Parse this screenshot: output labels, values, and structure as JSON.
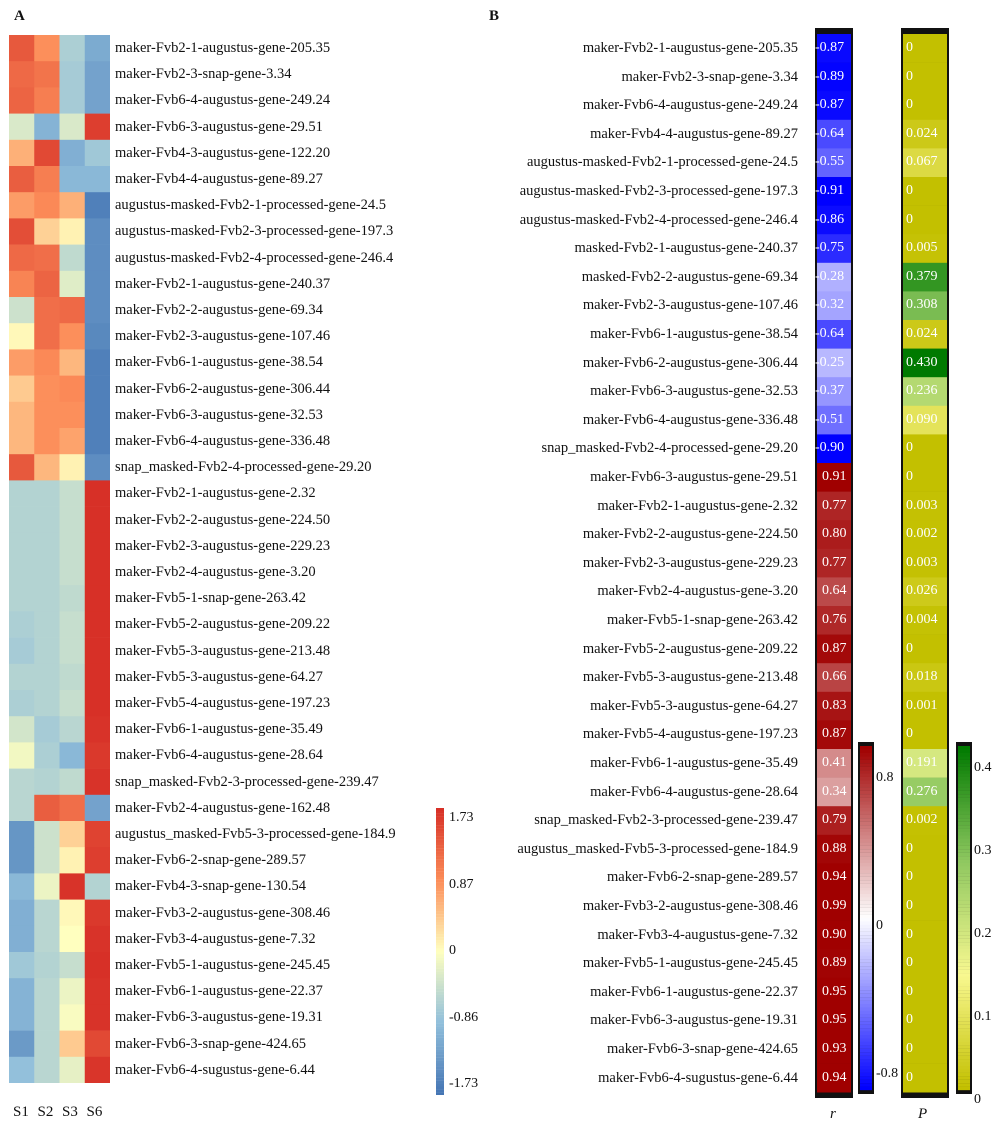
{
  "chart_data": [
    {
      "type": "heatmap",
      "panel": "A",
      "columns": [
        "S1",
        "S2",
        "S3",
        "S6"
      ],
      "rows": [
        "maker-Fvb2-1-augustus-gene-205.35",
        "maker-Fvb2-3-snap-gene-3.34",
        "maker-Fvb6-4-augustus-gene-249.24",
        "maker-Fvb6-3-augustus-gene-29.51",
        "maker-Fvb4-3-augustus-gene-122.20",
        "maker-Fvb4-4-augustus-gene-89.27",
        "augustus-masked-Fvb2-1-processed-gene-24.5",
        "augustus-masked-Fvb2-3-processed-gene-197.3",
        "augustus-masked-Fvb2-4-processed-gene-246.4",
        "maker-Fvb2-1-augustus-gene-240.37",
        "maker-Fvb2-2-augustus-gene-69.34",
        "maker-Fvb2-3-augustus-gene-107.46",
        "maker-Fvb6-1-augustus-gene-38.54",
        "maker-Fvb6-2-augustus-gene-306.44",
        "maker-Fvb6-3-augustus-gene-32.53",
        "maker-Fvb6-4-augustus-gene-336.48",
        "snap_masked-Fvb2-4-processed-gene-29.20",
        "maker-Fvb2-1-augustus-gene-2.32",
        "maker-Fvb2-2-augustus-gene-224.50",
        "maker-Fvb2-3-augustus-gene-229.23",
        "maker-Fvb2-4-augustus-gene-3.20",
        "maker-Fvb5-1-snap-gene-263.42",
        "maker-Fvb5-2-augustus-gene-209.22",
        "maker-Fvb5-3-augustus-gene-213.48",
        "maker-Fvb5-3-augustus-gene-64.27",
        "maker-Fvb5-4-augustus-gene-197.23",
        "maker-Fvb6-1-augustus-gene-35.49",
        "maker-Fvb6-4-augustus-gene-28.64",
        "snap_masked-Fvb2-3-processed-gene-239.47",
        "maker-Fvb2-4-augustus-gene-162.48",
        "augustus_masked-Fvb5-3-processed-gene-184.9",
        "maker-Fvb6-2-snap-gene-289.57",
        "maker-Fvb4-3-snap-gene-130.54",
        "maker-Fvb3-2-augustus-gene-308.46",
        "maker-Fvb3-4-augustus-gene-7.32",
        "maker-Fvb5-1-augustus-gene-245.45",
        "maker-Fvb6-1-augustus-gene-22.37",
        "maker-Fvb6-3-augustus-gene-19.31",
        "maker-Fvb6-3-snap-gene-424.65",
        "maker-Fvb6-4-sugustus-gene-6.44"
      ],
      "values": [
        [
          1.35,
          0.85,
          -0.65,
          -1.1
        ],
        [
          1.2,
          1.1,
          -0.7,
          -1.2
        ],
        [
          1.25,
          1.0,
          -0.7,
          -1.2
        ],
        [
          -0.3,
          -1.0,
          -0.3,
          1.6
        ],
        [
          0.6,
          1.5,
          -1.05,
          -0.75
        ],
        [
          1.3,
          1.0,
          -0.95,
          -0.95
        ],
        [
          0.75,
          0.9,
          0.6,
          -1.6
        ],
        [
          1.45,
          0.35,
          0.1,
          -1.45
        ],
        [
          1.2,
          1.15,
          -0.5,
          -1.45
        ],
        [
          0.95,
          1.25,
          -0.25,
          -1.45
        ],
        [
          -0.4,
          1.15,
          1.2,
          -1.45
        ],
        [
          0.05,
          1.15,
          0.85,
          -1.5
        ],
        [
          0.75,
          0.9,
          0.55,
          -1.6
        ],
        [
          0.4,
          0.85,
          0.9,
          -1.6
        ],
        [
          0.55,
          0.85,
          0.85,
          -1.6
        ],
        [
          0.55,
          0.85,
          0.7,
          -1.6
        ],
        [
          1.35,
          0.55,
          0.1,
          -1.45
        ],
        [
          -0.6,
          -0.6,
          -0.45,
          1.73
        ],
        [
          -0.6,
          -0.6,
          -0.45,
          1.73
        ],
        [
          -0.6,
          -0.6,
          -0.45,
          1.73
        ],
        [
          -0.6,
          -0.6,
          -0.45,
          1.73
        ],
        [
          -0.6,
          -0.6,
          -0.5,
          1.73
        ],
        [
          -0.65,
          -0.6,
          -0.45,
          1.73
        ],
        [
          -0.7,
          -0.6,
          -0.45,
          1.73
        ],
        [
          -0.6,
          -0.6,
          -0.5,
          1.73
        ],
        [
          -0.65,
          -0.6,
          -0.45,
          1.73
        ],
        [
          -0.35,
          -0.7,
          -0.55,
          1.7
        ],
        [
          -0.1,
          -0.65,
          -0.95,
          1.65
        ],
        [
          -0.55,
          -0.6,
          -0.5,
          1.7
        ],
        [
          -0.55,
          1.3,
          1.15,
          -1.2
        ],
        [
          -1.35,
          -0.4,
          0.35,
          1.55
        ],
        [
          -1.35,
          -0.4,
          0.1,
          1.6
        ],
        [
          -0.95,
          -0.15,
          1.7,
          -0.6
        ],
        [
          -1.05,
          -0.55,
          0.05,
          1.65
        ],
        [
          -1.05,
          -0.55,
          0.0,
          1.7
        ],
        [
          -0.75,
          -0.6,
          -0.45,
          1.73
        ],
        [
          -1.0,
          -0.55,
          -0.15,
          1.7
        ],
        [
          -1.0,
          -0.55,
          -0.05,
          1.7
        ],
        [
          -1.3,
          -0.55,
          0.4,
          1.5
        ],
        [
          -0.85,
          -0.55,
          -0.2,
          1.68
        ]
      ],
      "colorbar": {
        "ticks": [
          "1.73",
          "0.87",
          "0",
          "-0.86",
          "-1.73"
        ],
        "range": [
          -1.73,
          1.73
        ],
        "colors": [
          "#4575b4",
          "#91bfdb",
          "#ffffbf",
          "#fc8d59",
          "#d73027"
        ]
      },
      "xlabel": "",
      "ylabel": ""
    },
    {
      "type": "table",
      "panel": "B",
      "columns": [
        "r",
        "P"
      ],
      "rows": [
        "maker-Fvb2-1-augustus-gene-205.35",
        "maker-Fvb2-3-snap-gene-3.34",
        "maker-Fvb6-4-augustus-gene-249.24",
        "maker-Fvb4-4-augustus-gene-89.27",
        "augustus-masked-Fvb2-1-processed-gene-24.5",
        "augustus-masked-Fvb2-3-processed-gene-197.3",
        "augustus-masked-Fvb2-4-processed-gene-246.4",
        "masked-Fvb2-1-augustus-gene-240.37",
        "masked-Fvb2-2-augustus-gene-69.34",
        "maker-Fvb2-3-augustus-gene-107.46",
        "maker-Fvb6-1-augustus-gene-38.54",
        "maker-Fvb6-2-augustus-gene-306.44",
        "maker-Fvb6-3-augustus-gene-32.53",
        "maker-Fvb6-4-augustus-gene-336.48",
        "snap_masked-Fvb2-4-processed-gene-29.20",
        "maker-Fvb6-3-augustus-gene-29.51",
        "maker-Fvb2-1-augustus-gene-2.32",
        "maker-Fvb2-2-augustus-gene-224.50",
        "maker-Fvb2-3-augustus-gene-229.23",
        "maker-Fvb2-4-augustus-gene-3.20",
        "maker-Fvb5-1-snap-gene-263.42",
        "maker-Fvb5-2-augustus-gene-209.22",
        "maker-Fvb5-3-augustus-gene-213.48",
        "maker-Fvb5-3-augustus-gene-64.27",
        "maker-Fvb5-4-augustus-gene-197.23",
        "maker-Fvb6-1-augustus-gene-35.49",
        "maker-Fvb6-4-augustus-gene-28.64",
        "snap_masked-Fvb2-3-processed-gene-239.47",
        "augustus_masked-Fvb5-3-processed-gene-184.9",
        "maker-Fvb6-2-snap-gene-289.57",
        "maker-Fvb3-2-augustus-gene-308.46",
        "maker-Fvb3-4-augustus-gene-7.32",
        "maker-Fvb5-1-augustus-gene-245.45",
        "maker-Fvb6-1-augustus-gene-22.37",
        "maker-Fvb6-3-augustus-gene-19.31",
        "maker-Fvb6-3-snap-gene-424.65",
        "maker-Fvb6-4-sugustus-gene-6.44"
      ],
      "r": [
        "-0.87",
        "-0.89",
        "-0.87",
        "-0.64",
        "-0.55",
        "-0.91",
        "-0.86",
        "-0.75",
        "-0.28",
        "-0.32",
        "-0.64",
        "-0.25",
        "-0.37",
        "-0.51",
        "-0.90",
        "0.91",
        "0.77",
        "0.80",
        "0.77",
        "0.64",
        "0.76",
        "0.87",
        "0.66",
        "0.83",
        "0.87",
        "0.41",
        "0.34",
        "0.79",
        "0.88",
        "0.94",
        "0.99",
        "0.90",
        "0.89",
        "0.95",
        "0.95",
        "0.93",
        "0.94"
      ],
      "P": [
        "0",
        "0",
        "0",
        "0.024",
        "0.067",
        "0",
        "0",
        "0.005",
        "0.379",
        "0.308",
        "0.024",
        "0.430",
        "0.236",
        "0.090",
        "0",
        "0",
        "0.003",
        "0.002",
        "0.003",
        "0.026",
        "0.004",
        "0",
        "0.018",
        "0.001",
        "0",
        "0.191",
        "0.276",
        "0.002",
        "0",
        "0",
        "0",
        "0",
        "0",
        "0",
        "0",
        "0",
        "0"
      ],
      "r_colorbar": {
        "ticks": [
          "0.8",
          "0",
          "-0.8"
        ],
        "range": [
          -0.9,
          0.9
        ],
        "colors": [
          "#0000ff",
          "#ffffff",
          "#a00000"
        ]
      },
      "p_colorbar": {
        "ticks": [
          "0.4",
          "0.3",
          "0.2",
          "0.1",
          "0"
        ],
        "range": [
          0,
          0.43
        ],
        "colors": [
          "#c3c000",
          "#f8f890",
          "#8fc860",
          "#007a00"
        ]
      },
      "xlabel_r": "r",
      "xlabel_p": "P"
    }
  ],
  "labels": {
    "panel_a": "A",
    "panel_b": "B"
  }
}
